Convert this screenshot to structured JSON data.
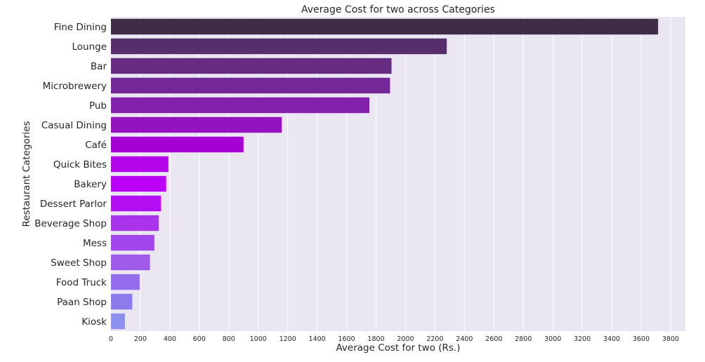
{
  "chart_data": {
    "type": "bar",
    "orientation": "horizontal",
    "title": "Average Cost for two  across Categories",
    "xlabel": "Average Cost for two (Rs.)",
    "ylabel": "Restaurant Categories",
    "xlim": [
      0,
      3900
    ],
    "xticks": [
      0,
      200,
      400,
      600,
      800,
      1000,
      1200,
      1400,
      1600,
      1800,
      2000,
      2200,
      2400,
      2600,
      2800,
      3000,
      3200,
      3400,
      3600,
      3800
    ],
    "grid": true,
    "categories": [
      "Fine Dining",
      "Lounge",
      "Bar",
      "Microbrewery",
      "Pub",
      "Casual Dining",
      "Café",
      "Quick Bites",
      "Bakery",
      "Dessert Parlor",
      "Beverage Shop",
      "Mess",
      "Sweet Shop",
      "Food Truck",
      "Paan Shop",
      "Kiosk"
    ],
    "values": [
      3715,
      2280,
      1905,
      1895,
      1755,
      1160,
      900,
      390,
      375,
      340,
      325,
      295,
      265,
      195,
      145,
      95
    ],
    "colors": [
      "#3f2c47",
      "#552e6b",
      "#652c82",
      "#742897",
      "#8421ab",
      "#9512bf",
      "#a500d3",
      "#b303e8",
      "#ba00f7",
      "#b40ff2",
      "#aa33ec",
      "#a048eb",
      "#9e5be9",
      "#946ded",
      "#8d7bed",
      "#8d90ef"
    ],
    "background": "#eae6f2"
  }
}
